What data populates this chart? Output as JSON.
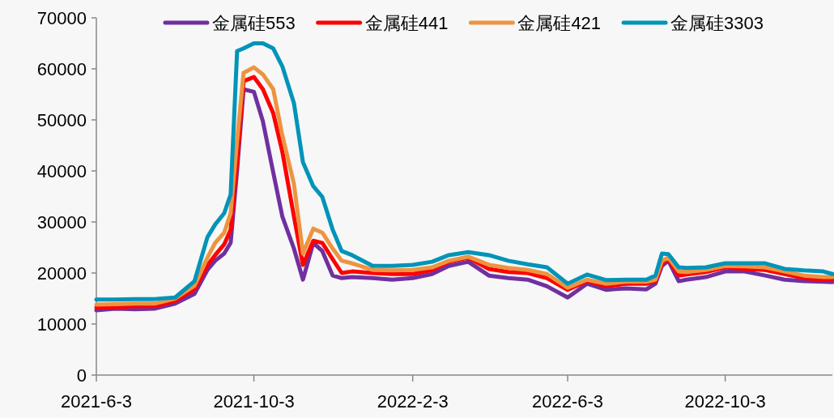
{
  "chart_data": {
    "type": "line",
    "x": [
      "2021-06-03",
      "2021-06-18",
      "2021-07-03",
      "2021-07-18",
      "2021-08-03",
      "2021-08-18",
      "2021-08-28",
      "2021-09-03",
      "2021-09-10",
      "2021-09-15",
      "2021-09-20",
      "2021-09-25",
      "2021-10-03",
      "2021-10-10",
      "2021-10-18",
      "2021-10-25",
      "2021-11-03",
      "2021-11-10",
      "2021-11-18",
      "2021-11-25",
      "2021-12-03",
      "2021-12-10",
      "2021-12-18",
      "2022-01-03",
      "2022-01-18",
      "2022-02-03",
      "2022-02-18",
      "2022-03-03",
      "2022-03-18",
      "2022-04-03",
      "2022-04-18",
      "2022-05-03",
      "2022-05-18",
      "2022-06-03",
      "2022-06-18",
      "2022-07-03",
      "2022-07-18",
      "2022-08-03",
      "2022-08-10",
      "2022-08-15",
      "2022-08-20",
      "2022-08-28",
      "2022-09-03",
      "2022-09-18",
      "2022-10-03",
      "2022-10-18",
      "2022-11-03",
      "2022-11-18",
      "2022-12-03",
      "2022-12-18",
      "2022-12-25"
    ],
    "series": [
      {
        "name": "金属硅553",
        "color": "#7030a0",
        "values": [
          12700,
          13000,
          12900,
          13000,
          14000,
          15900,
          20600,
          22400,
          23800,
          25900,
          40200,
          56000,
          55500,
          49700,
          39700,
          31100,
          24800,
          18700,
          25900,
          24300,
          19500,
          19000,
          19200,
          19000,
          18700,
          19000,
          19800,
          21400,
          22200,
          19500,
          19000,
          18700,
          17400,
          15200,
          17900,
          16700,
          17000,
          16800,
          17900,
          21400,
          22400,
          18400,
          18700,
          19200,
          20300,
          20300,
          19500,
          18700,
          18400,
          18300,
          18200
        ]
      },
      {
        "name": "金属硅441",
        "color": "#ff0000",
        "values": [
          13200,
          13300,
          13500,
          13500,
          14500,
          16800,
          21500,
          23500,
          25600,
          28500,
          41700,
          57600,
          58400,
          56000,
          51300,
          43800,
          31100,
          21600,
          26300,
          25900,
          22700,
          20000,
          20300,
          20000,
          19800,
          19800,
          20600,
          22200,
          23000,
          20800,
          20200,
          20000,
          19000,
          16700,
          18400,
          17400,
          17900,
          17900,
          18400,
          21900,
          22700,
          19500,
          19700,
          20200,
          21100,
          20800,
          20600,
          19800,
          19000,
          18700,
          18700
        ]
      },
      {
        "name": "金属硅421",
        "color": "#ed9440",
        "values": [
          13800,
          13900,
          14000,
          14000,
          15000,
          17500,
          23000,
          25900,
          27900,
          31700,
          46000,
          59200,
          60300,
          58900,
          56000,
          47000,
          37500,
          23800,
          28700,
          27900,
          24800,
          22400,
          21900,
          20600,
          20500,
          20600,
          21100,
          22400,
          23200,
          21600,
          21000,
          20600,
          19800,
          17100,
          18700,
          17900,
          18300,
          18300,
          18700,
          22400,
          23000,
          20300,
          20200,
          20600,
          21400,
          21300,
          21100,
          20300,
          19500,
          19200,
          19200
        ]
      },
      {
        "name": "金属硅3303",
        "color": "#0094b8",
        "values": [
          14800,
          14800,
          14900,
          14900,
          15200,
          18400,
          27000,
          29500,
          31700,
          35400,
          63500,
          64000,
          65000,
          65000,
          64000,
          60500,
          53300,
          41700,
          37000,
          34900,
          28500,
          24300,
          23500,
          21400,
          21400,
          21600,
          22200,
          23500,
          24100,
          23500,
          22400,
          21700,
          21100,
          17900,
          19700,
          18600,
          18700,
          18700,
          19500,
          23800,
          23700,
          21100,
          21000,
          21100,
          21900,
          21900,
          21900,
          20800,
          20500,
          20300,
          19800
        ]
      }
    ],
    "xlim": [
      "2021-06-03",
      "2022-12-25"
    ],
    "xticks": [
      {
        "value": "2021-06-03",
        "label": "2021-6-3"
      },
      {
        "value": "2021-10-03",
        "label": "2021-10-3"
      },
      {
        "value": "2022-02-03",
        "label": "2022-2-3"
      },
      {
        "value": "2022-06-03",
        "label": "2022-6-3"
      },
      {
        "value": "2022-10-03",
        "label": "2022-10-3"
      }
    ],
    "ylim": [
      0,
      70000
    ],
    "yticks": [
      0,
      10000,
      20000,
      30000,
      40000,
      50000,
      60000,
      70000
    ],
    "legend": "top",
    "grid": false,
    "marker": "none",
    "line_style": "solid"
  }
}
